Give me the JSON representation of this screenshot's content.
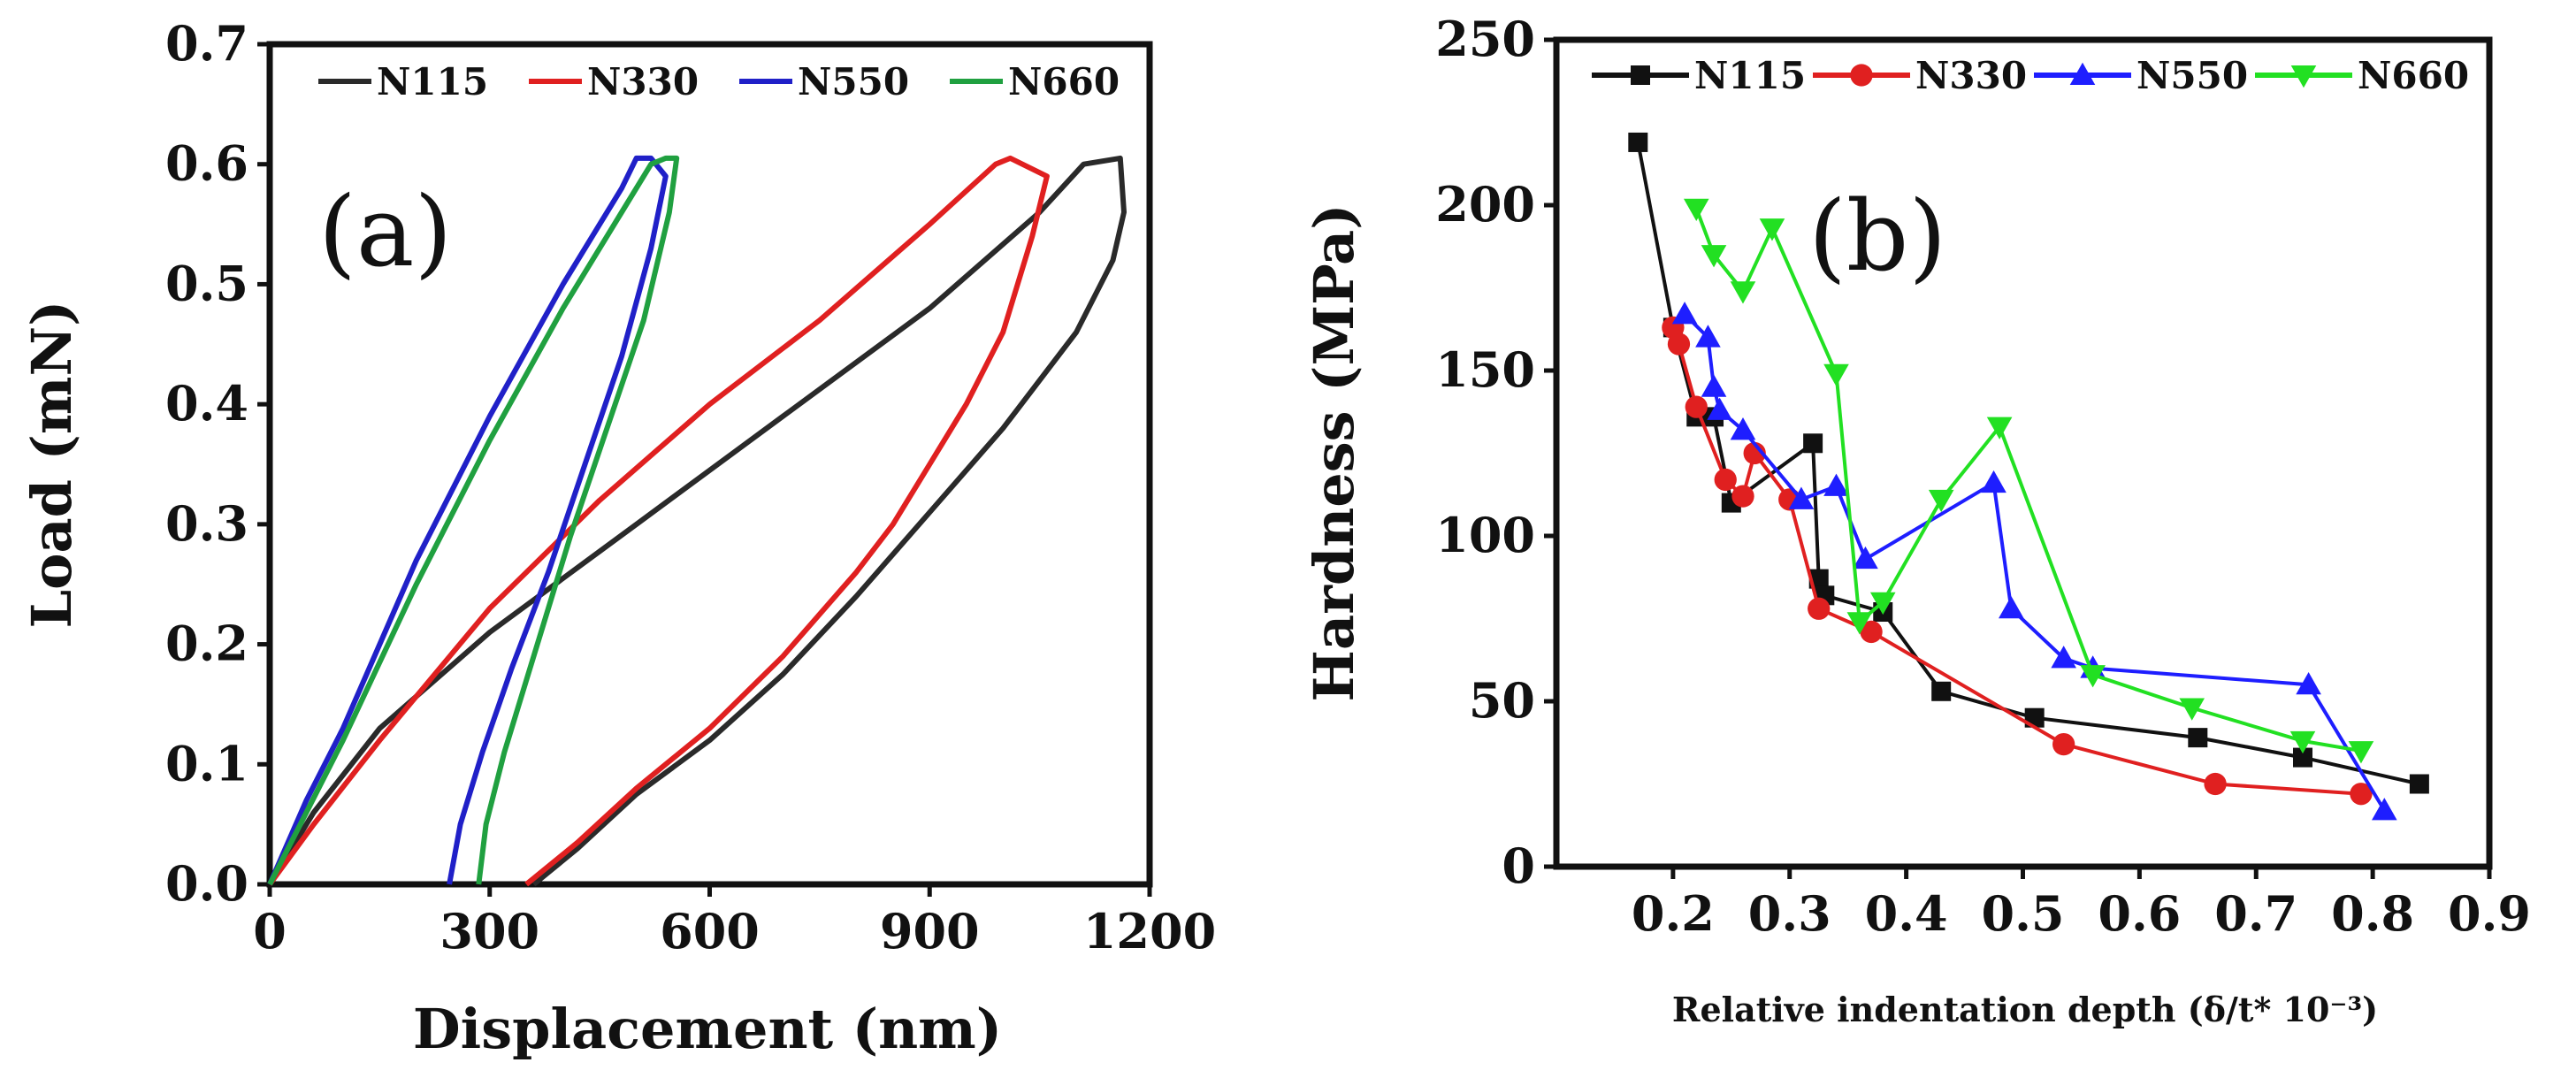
{
  "chart_data": [
    {
      "type": "line",
      "panel_label": "(a)",
      "xlabel": "Displacement (nm)",
      "ylabel": "Load (mN)",
      "xlim": [
        0,
        1200
      ],
      "ylim": [
        0,
        0.7
      ],
      "xticks": [
        "0",
        "300",
        "600",
        "900",
        "1200"
      ],
      "yticks": [
        "0.0",
        "0.1",
        "0.2",
        "0.3",
        "0.4",
        "0.5",
        "0.6",
        "0.7"
      ],
      "legend": [
        "N115",
        "N330",
        "N550",
        "N660"
      ],
      "legend_position": "top",
      "series": [
        {
          "name": "N115",
          "color": "#2a2a2a",
          "x": [
            0,
            60,
            150,
            300,
            500,
            700,
            900,
            1050,
            1110,
            1160,
            1165,
            1150,
            1100,
            1000,
            900,
            800,
            700,
            600,
            500,
            420,
            360
          ],
          "y": [
            0,
            0.06,
            0.13,
            0.21,
            0.3,
            0.39,
            0.48,
            0.56,
            0.6,
            0.605,
            0.56,
            0.52,
            0.46,
            0.38,
            0.31,
            0.24,
            0.175,
            0.12,
            0.075,
            0.03,
            0
          ]
        },
        {
          "name": "N330",
          "color": "#e02020",
          "x": [
            0,
            60,
            150,
            300,
            450,
            600,
            750,
            900,
            990,
            1010,
            1060,
            1040,
            1000,
            950,
            900,
            850,
            800,
            700,
            600,
            500,
            420,
            350
          ],
          "y": [
            0,
            0.05,
            0.12,
            0.23,
            0.32,
            0.4,
            0.47,
            0.55,
            0.6,
            0.605,
            0.59,
            0.54,
            0.46,
            0.4,
            0.35,
            0.3,
            0.26,
            0.19,
            0.13,
            0.08,
            0.035,
            0
          ]
        },
        {
          "name": "N550",
          "color": "#2020c8",
          "x": [
            0,
            50,
            100,
            200,
            300,
            400,
            480,
            500,
            520,
            540,
            520,
            480,
            430,
            380,
            330,
            290,
            260,
            245
          ],
          "y": [
            0,
            0.07,
            0.13,
            0.27,
            0.39,
            0.5,
            0.58,
            0.605,
            0.605,
            0.59,
            0.53,
            0.44,
            0.35,
            0.26,
            0.18,
            0.11,
            0.05,
            0
          ]
        },
        {
          "name": "N660",
          "color": "#20a040",
          "x": [
            0,
            50,
            100,
            200,
            300,
            400,
            480,
            520,
            540,
            555,
            545,
            510,
            460,
            410,
            360,
            320,
            295,
            285
          ],
          "y": [
            0,
            0.06,
            0.12,
            0.25,
            0.37,
            0.48,
            0.56,
            0.6,
            0.605,
            0.605,
            0.56,
            0.47,
            0.38,
            0.29,
            0.19,
            0.11,
            0.05,
            0
          ]
        }
      ]
    },
    {
      "type": "line",
      "panel_label": "(b)",
      "xlabel": "Relative indentation depth (δ/t* 10⁻³)",
      "ylabel": "Hardness (MPa)",
      "xlim": [
        0.1,
        0.9
      ],
      "ylim": [
        0,
        250
      ],
      "xticks": [
        "0.2",
        "0.3",
        "0.4",
        "0.5",
        "0.6",
        "0.7",
        "0.8",
        "0.9"
      ],
      "yticks": [
        "0",
        "50",
        "100",
        "150",
        "200",
        "250"
      ],
      "legend": [
        "N115",
        "N330",
        "N550",
        "N660"
      ],
      "legend_position": "top",
      "series": [
        {
          "name": "N115",
          "color": "#111111",
          "marker": "square",
          "x": [
            0.17,
            0.2,
            0.22,
            0.235,
            0.25,
            0.32,
            0.325,
            0.33,
            0.38,
            0.43,
            0.51,
            0.65,
            0.74,
            0.84
          ],
          "y": [
            219,
            163,
            136,
            136,
            110,
            128,
            87,
            82,
            77,
            53,
            45,
            39,
            33,
            25
          ]
        },
        {
          "name": "N330",
          "color": "#e02020",
          "marker": "circle",
          "x": [
            0.2,
            0.205,
            0.22,
            0.245,
            0.26,
            0.27,
            0.3,
            0.325,
            0.37,
            0.535,
            0.665,
            0.79
          ],
          "y": [
            163,
            158,
            139,
            117,
            112,
            125,
            111,
            78,
            71,
            37,
            25,
            22
          ]
        },
        {
          "name": "N550",
          "color": "#1e1eff",
          "marker": "triangle-up",
          "x": [
            0.21,
            0.23,
            0.235,
            0.24,
            0.26,
            0.31,
            0.34,
            0.365,
            0.475,
            0.49,
            0.535,
            0.56,
            0.745,
            0.81
          ],
          "y": [
            167,
            160,
            145,
            138,
            132,
            111,
            115,
            93,
            116,
            78,
            63,
            60,
            55,
            17
          ]
        },
        {
          "name": "N660",
          "color": "#22e022",
          "marker": "triangle-down",
          "x": [
            0.22,
            0.235,
            0.26,
            0.285,
            0.34,
            0.36,
            0.38,
            0.43,
            0.48,
            0.56,
            0.645,
            0.74,
            0.79
          ],
          "y": [
            199,
            185,
            174,
            193,
            149,
            74,
            80,
            111,
            133,
            58,
            48,
            38,
            35
          ]
        }
      ]
    }
  ]
}
